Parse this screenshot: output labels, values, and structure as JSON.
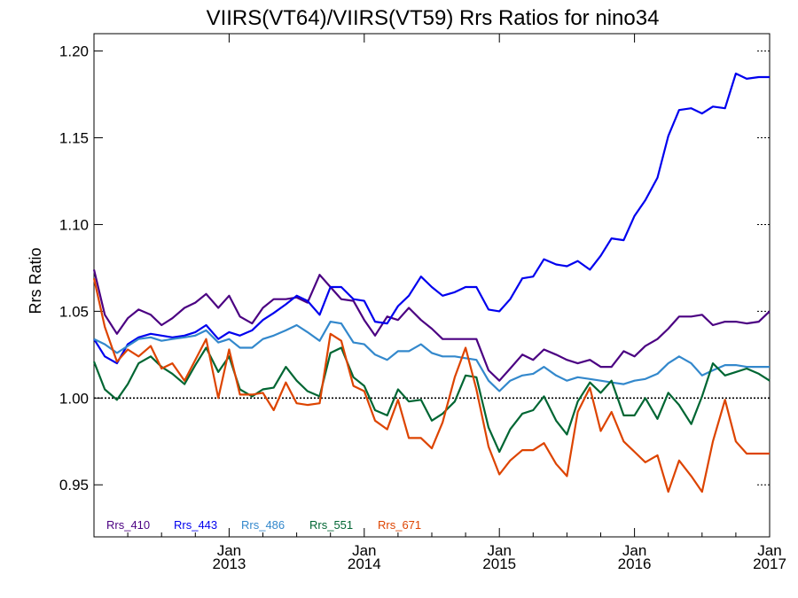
{
  "chart_data": {
    "type": "line",
    "title": "VIIRS(VT64)/VIIRS(VT59)  Rrs Ratios for nino34",
    "xlabel": "",
    "ylabel": "Rrs Ratio",
    "xlim": [
      2012.0,
      2017.0
    ],
    "ylim": [
      0.92,
      1.21
    ],
    "y_ticks": [
      {
        "value": 0.95,
        "label": "0.95"
      },
      {
        "value": 1.0,
        "label": "1.00"
      },
      {
        "value": 1.05,
        "label": "1.05"
      },
      {
        "value": 1.1,
        "label": "1.10"
      },
      {
        "value": 1.15,
        "label": "1.15"
      },
      {
        "value": 1.2,
        "label": "1.20"
      }
    ],
    "x_ticks": [
      {
        "value": 2013,
        "month": "Jan",
        "year": "2013"
      },
      {
        "value": 2014,
        "month": "Jan",
        "year": "2014"
      },
      {
        "value": 2015,
        "month": "Jan",
        "year": "2015"
      },
      {
        "value": 2016,
        "month": "Jan",
        "year": "2016"
      },
      {
        "value": 2017,
        "month": "Jan",
        "year": "2017"
      }
    ],
    "reference_line": 1.0,
    "legend_placement": "bottom-left",
    "x": [
      2012.0,
      2012.08,
      2012.17,
      2012.25,
      2012.33,
      2012.42,
      2012.5,
      2012.58,
      2012.67,
      2012.75,
      2012.83,
      2012.92,
      2013.0,
      2013.08,
      2013.17,
      2013.25,
      2013.33,
      2013.42,
      2013.5,
      2013.58,
      2013.67,
      2013.75,
      2013.83,
      2013.92,
      2014.0,
      2014.08,
      2014.17,
      2014.25,
      2014.33,
      2014.42,
      2014.5,
      2014.58,
      2014.67,
      2014.75,
      2014.83,
      2014.92,
      2015.0,
      2015.08,
      2015.17,
      2015.25,
      2015.33,
      2015.42,
      2015.5,
      2015.58,
      2015.67,
      2015.75,
      2015.83,
      2015.92,
      2016.0,
      2016.08,
      2016.17,
      2016.25,
      2016.33,
      2016.42,
      2016.5,
      2016.58,
      2016.67,
      2016.75,
      2016.83,
      2016.92,
      2017.0
    ],
    "series": [
      {
        "name": "Rrs_410",
        "color": "#4b0082",
        "values": [
          1.074,
          1.048,
          1.037,
          1.046,
          1.051,
          1.048,
          1.042,
          1.046,
          1.052,
          1.055,
          1.06,
          1.052,
          1.059,
          1.047,
          1.043,
          1.052,
          1.057,
          1.057,
          1.058,
          1.055,
          1.071,
          1.064,
          1.057,
          1.056,
          1.045,
          1.036,
          1.047,
          1.045,
          1.052,
          1.045,
          1.04,
          1.034,
          1.034,
          1.034,
          1.034,
          1.016,
          1.01,
          1.017,
          1.025,
          1.022,
          1.028,
          1.025,
          1.022,
          1.02,
          1.022,
          1.018,
          1.018,
          1.027,
          1.024,
          1.03,
          1.034,
          1.04,
          1.047,
          1.047,
          1.048,
          1.042,
          1.044,
          1.044,
          1.043,
          1.044,
          1.05
        ]
      },
      {
        "name": "Rrs_443",
        "color": "#0000ee",
        "values": [
          1.034,
          1.024,
          1.02,
          1.031,
          1.035,
          1.037,
          1.036,
          1.035,
          1.036,
          1.038,
          1.042,
          1.034,
          1.038,
          1.036,
          1.039,
          1.045,
          1.049,
          1.054,
          1.059,
          1.056,
          1.048,
          1.064,
          1.064,
          1.057,
          1.056,
          1.044,
          1.043,
          1.053,
          1.059,
          1.07,
          1.064,
          1.059,
          1.061,
          1.064,
          1.064,
          1.051,
          1.05,
          1.057,
          1.069,
          1.07,
          1.08,
          1.077,
          1.076,
          1.079,
          1.074,
          1.082,
          1.092,
          1.091,
          1.105,
          1.114,
          1.127,
          1.151,
          1.166,
          1.167,
          1.164,
          1.168,
          1.167,
          1.187,
          1.184,
          1.185,
          1.185
        ]
      },
      {
        "name": "Rrs_486",
        "color": "#3388cc",
        "values": [
          1.034,
          1.031,
          1.026,
          1.03,
          1.034,
          1.035,
          1.033,
          1.034,
          1.035,
          1.036,
          1.039,
          1.032,
          1.034,
          1.029,
          1.029,
          1.034,
          1.036,
          1.039,
          1.042,
          1.038,
          1.033,
          1.044,
          1.043,
          1.032,
          1.031,
          1.025,
          1.022,
          1.027,
          1.027,
          1.031,
          1.026,
          1.024,
          1.024,
          1.023,
          1.022,
          1.01,
          1.004,
          1.01,
          1.013,
          1.014,
          1.018,
          1.013,
          1.01,
          1.012,
          1.011,
          1.01,
          1.009,
          1.008,
          1.01,
          1.011,
          1.014,
          1.02,
          1.024,
          1.02,
          1.013,
          1.016,
          1.019,
          1.019,
          1.018,
          1.018,
          1.018
        ]
      },
      {
        "name": "Rrs_551",
        "color": "#006633",
        "values": [
          1.021,
          1.005,
          0.999,
          1.008,
          1.02,
          1.024,
          1.018,
          1.014,
          1.008,
          1.019,
          1.029,
          1.015,
          1.024,
          1.005,
          1.001,
          1.005,
          1.006,
          1.018,
          1.01,
          1.004,
          1.001,
          1.026,
          1.029,
          1.012,
          1.007,
          0.993,
          0.99,
          1.005,
          0.998,
          0.999,
          0.987,
          0.991,
          0.998,
          1.013,
          1.012,
          0.983,
          0.969,
          0.982,
          0.991,
          0.993,
          1.001,
          0.987,
          0.979,
          0.998,
          1.009,
          1.003,
          1.01,
          0.99,
          0.99,
          1.0,
          0.988,
          1.003,
          0.996,
          0.985,
          1.001,
          1.02,
          1.013,
          1.015,
          1.017,
          1.014,
          1.01
        ]
      },
      {
        "name": "Rrs_671",
        "color": "#dd4400",
        "values": [
          1.069,
          1.041,
          1.021,
          1.028,
          1.024,
          1.03,
          1.017,
          1.02,
          1.01,
          1.022,
          1.034,
          1.0,
          1.028,
          1.002,
          1.002,
          1.003,
          0.993,
          1.009,
          0.997,
          0.996,
          0.997,
          1.037,
          1.033,
          1.007,
          1.004,
          0.987,
          0.982,
          0.999,
          0.977,
          0.977,
          0.971,
          0.986,
          1.012,
          1.029,
          1.005,
          0.972,
          0.956,
          0.964,
          0.97,
          0.97,
          0.974,
          0.962,
          0.955,
          0.992,
          1.006,
          0.981,
          0.992,
          0.975,
          0.969,
          0.963,
          0.967,
          0.946,
          0.964,
          0.955,
          0.946,
          0.975,
          0.999,
          0.975,
          0.968,
          0.968,
          0.968
        ]
      }
    ]
  }
}
